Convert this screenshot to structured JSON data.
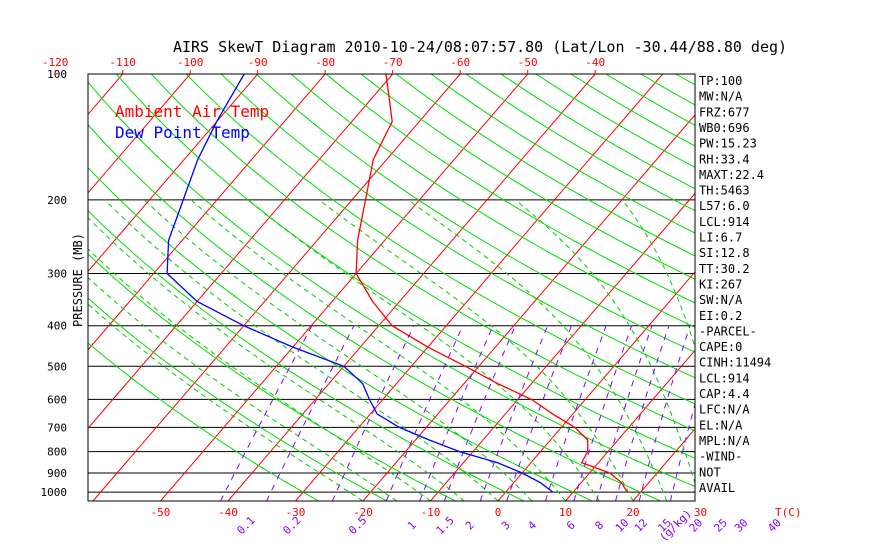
{
  "chart_data": {
    "type": "skewt",
    "title": "AIRS SkewT Diagram 2010-10-24/08:07:57.80 (Lat/Lon -30.44/88.80 deg)",
    "ylabel": "PRESSURE (MB)",
    "pressure_levels": [
      100,
      200,
      300,
      400,
      500,
      600,
      700,
      800,
      900,
      1000
    ],
    "pressure_labels": [
      "100",
      "200",
      "300",
      "400",
      "500",
      "600",
      "700",
      "800",
      "900",
      "1000"
    ],
    "ylim": [
      100,
      1050
    ],
    "top_temp_ticks": [
      "-120",
      "-110",
      "-100",
      "-90",
      "-80",
      "-70",
      "-60",
      "-50",
      "-40"
    ],
    "bottom_temp_ticks": [
      "-50",
      "-40",
      "-30",
      "-20",
      "-10",
      "0",
      "10",
      "20",
      "30",
      "T(C)"
    ],
    "mixing_ratio_ticks": [
      "0.1",
      "0.2",
      "0.5",
      "1",
      "1.5",
      "2",
      "3",
      "4",
      "6",
      "8",
      "10",
      "12",
      "15",
      "20",
      "25",
      "30",
      "40",
      "(g/kg)"
    ],
    "legend": {
      "placement": "top-left",
      "entries": [
        "Ambient Air Temp",
        "Dew Point Temp"
      ]
    },
    "colors": {
      "temperature": "#ff0000",
      "dewpoint": "#0000ff",
      "isotherm": "#ff0000",
      "dry_adiabat": "#00dd00",
      "moist_adiabat": "#00cc00",
      "mixing_ratio": "#8800ff",
      "top_ticks": "#ff0000",
      "bottom_ticks": "#ff0000",
      "mixing_ticks": "#8800ff"
    },
    "series": [
      {
        "name": "Ambient Air Temp",
        "pressure": [
          100,
          130,
          160,
          200,
          250,
          300,
          350,
          400,
          450,
          500,
          550,
          600,
          650,
          700,
          750,
          800,
          850,
          900,
          950,
          1000
        ],
        "temperature": [
          -71,
          -64,
          -62,
          -58,
          -54,
          -50,
          -44,
          -38,
          -30,
          -22,
          -15,
          -8,
          -3,
          2,
          5.5,
          7,
          7.5,
          13,
          16,
          18
        ]
      },
      {
        "name": "Dew Point Temp",
        "pressure": [
          100,
          130,
          160,
          200,
          250,
          300,
          350,
          400,
          450,
          500,
          550,
          600,
          650,
          700,
          750,
          800,
          850,
          900,
          950,
          1000
        ],
        "temperature": [
          -92,
          -90,
          -88,
          -85,
          -82,
          -78,
          -70,
          -60,
          -50,
          -40,
          -35,
          -32,
          -29,
          -24,
          -18,
          -12,
          -5,
          0,
          4,
          7
        ]
      }
    ],
    "indices": [
      "TP:100",
      "MW:N/A",
      "FRZ:677",
      "WB0:696",
      "PW:15.23",
      "RH:33.4",
      "MAXT:22.4",
      "TH:5463",
      "L57:6.0",
      "LCL:914",
      "LI:6.7",
      "SI:12.8",
      "TT:30.2",
      "KI:267",
      "SW:N/A",
      "EI:0.2",
      "-PARCEL-",
      "CAPE:0",
      "CINH:11494",
      "LCL:914",
      "CAP:4.4",
      "LFC:N/A",
      "EL:N/A",
      "MPL:N/A",
      "-WIND-",
      "NOT",
      "AVAIL"
    ]
  }
}
